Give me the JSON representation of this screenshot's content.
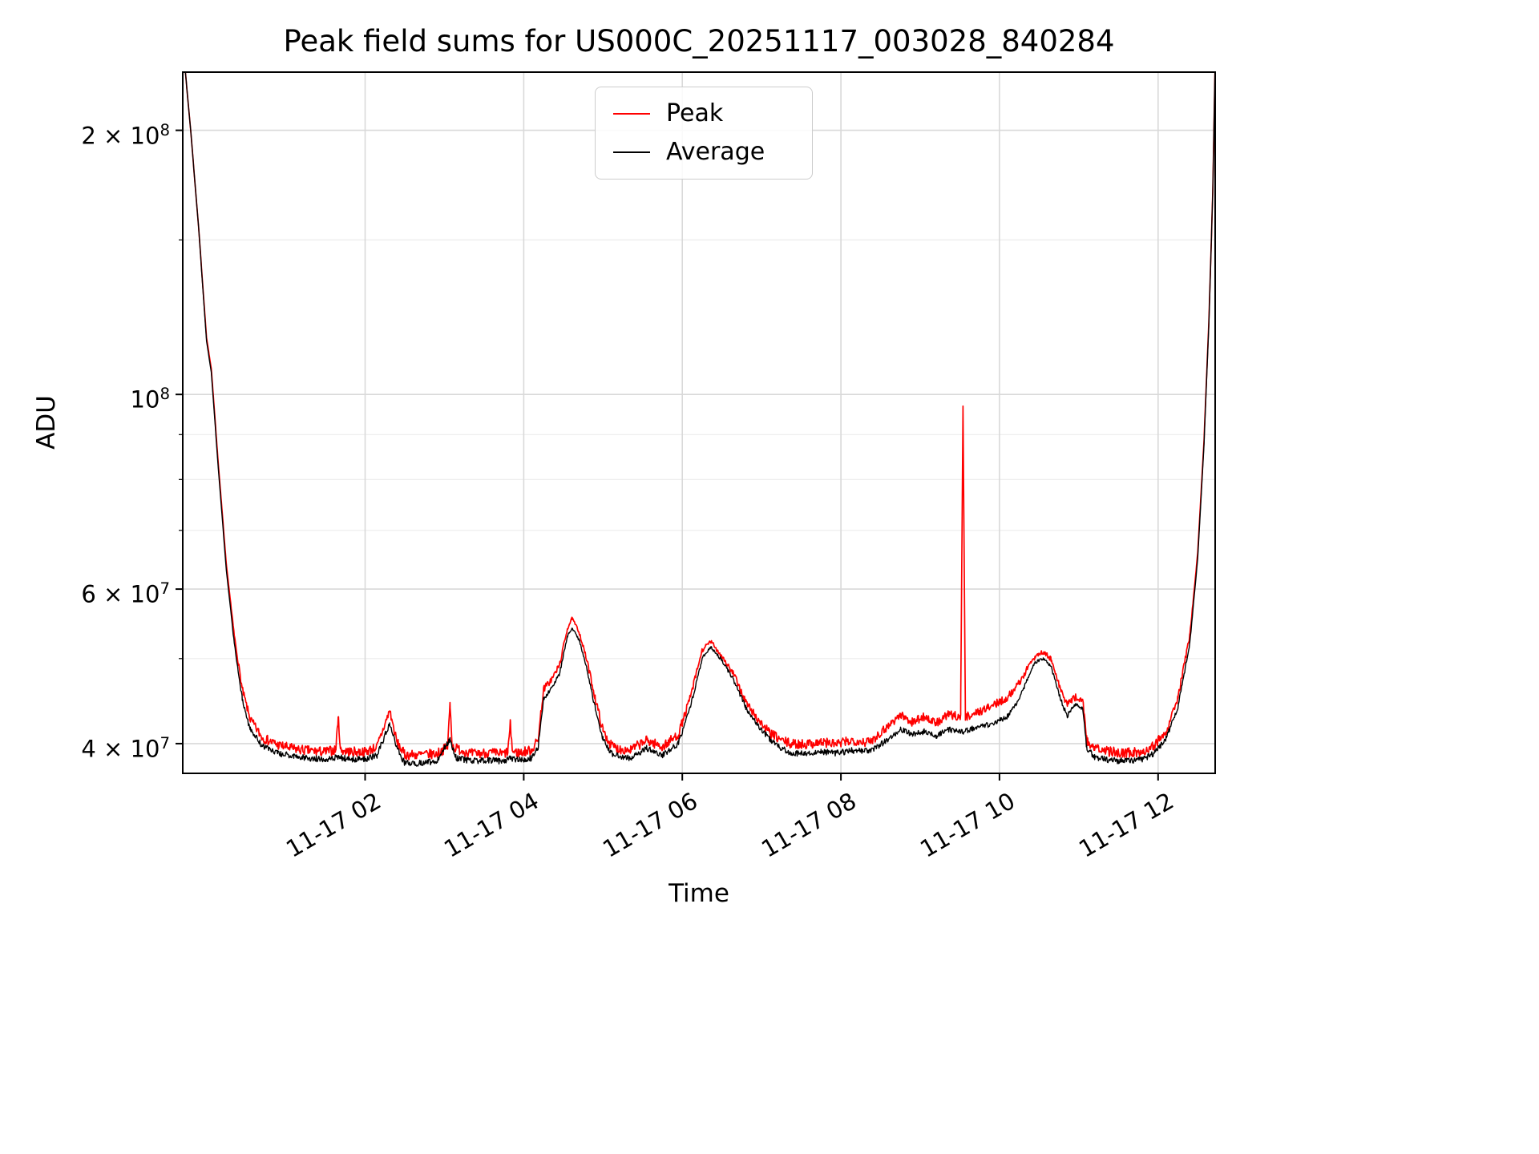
{
  "chart_data": {
    "type": "line",
    "title": "Peak field sums for US000C_20251117_003028_840284",
    "xlabel": "Time",
    "ylabel": "ADU",
    "grid": true,
    "background": "#ffffff",
    "style": {
      "grid_major": "#d9d9d9",
      "grid_minor": "#ececec",
      "spine": "#000000",
      "legend_edge": "#cccccc"
    },
    "legend": {
      "loc": "upper center",
      "entries": [
        "Peak",
        "Average"
      ]
    },
    "axis": {
      "t_min": -0.3,
      "t_max": 12.72,
      "y_min": 37000000.0,
      "y_max": 233000000.0,
      "y_scale": "log",
      "x_unit": "hours on 11-17"
    },
    "x_ticks": [
      {
        "t": 2,
        "label": "11-17 02"
      },
      {
        "t": 4,
        "label": "11-17 04"
      },
      {
        "t": 6,
        "label": "11-17 06"
      },
      {
        "t": 8,
        "label": "11-17 08"
      },
      {
        "t": 10,
        "label": "11-17 10"
      },
      {
        "t": 12,
        "label": "11-17 12"
      }
    ],
    "y_ticks": [
      {
        "value": 200000000.0,
        "mantissa": "2 × 10",
        "exp": "8"
      },
      {
        "value": 100000000.0,
        "mantissa": "10",
        "exp": "8"
      },
      {
        "value": 60000000.0,
        "mantissa": "6 × 10",
        "exp": "7"
      },
      {
        "value": 40000000.0,
        "mantissa": "4 × 10",
        "exp": "7"
      }
    ],
    "y_minor_gridlines": [
      50000000.0,
      70000000.0,
      80000000.0,
      90000000.0,
      150000000.0
    ],
    "value_scale": 10000000.0,
    "noise": {
      "seed": 7,
      "quiet_fade_hi": 6.2,
      "quiet_fade_range": 2.2
    },
    "series": [
      {
        "name": "Peak",
        "color": "#ff0000",
        "width": 1.7,
        "noise_amp": 0.013,
        "noise_bias": 0.7,
        "keypoints": [
          [
            -0.28,
            24
          ],
          [
            -0.2,
            20
          ],
          [
            -0.1,
            15.5
          ],
          [
            0.0,
            11.6
          ],
          [
            0.06,
            10.7
          ],
          [
            0.15,
            8.3
          ],
          [
            0.25,
            6.4
          ],
          [
            0.35,
            5.3
          ],
          [
            0.45,
            4.6
          ],
          [
            0.55,
            4.25
          ],
          [
            0.7,
            4.05
          ],
          [
            0.9,
            3.97
          ],
          [
            1.1,
            3.93
          ],
          [
            1.3,
            3.91
          ],
          [
            1.5,
            3.9
          ],
          [
            1.63,
            3.92
          ],
          [
            1.66,
            4.28
          ],
          [
            1.69,
            3.92
          ],
          [
            1.8,
            3.9
          ],
          [
            2.0,
            3.9
          ],
          [
            2.15,
            3.95
          ],
          [
            2.31,
            4.35
          ],
          [
            2.4,
            4.0
          ],
          [
            2.5,
            3.87
          ],
          [
            2.7,
            3.87
          ],
          [
            2.9,
            3.88
          ],
          [
            3.04,
            3.95
          ],
          [
            3.07,
            4.42
          ],
          [
            3.1,
            3.95
          ],
          [
            3.35,
            3.88
          ],
          [
            3.55,
            3.89
          ],
          [
            3.75,
            3.88
          ],
          [
            3.8,
            3.9
          ],
          [
            3.83,
            4.2
          ],
          [
            3.86,
            3.9
          ],
          [
            3.95,
            3.89
          ],
          [
            4.1,
            3.92
          ],
          [
            4.18,
            4.02
          ],
          [
            4.25,
            4.6
          ],
          [
            4.35,
            4.72
          ],
          [
            4.45,
            4.9
          ],
          [
            4.55,
            5.4
          ],
          [
            4.61,
            5.55
          ],
          [
            4.7,
            5.35
          ],
          [
            4.8,
            4.95
          ],
          [
            4.9,
            4.5
          ],
          [
            5.0,
            4.12
          ],
          [
            5.1,
            3.97
          ],
          [
            5.19,
            3.93
          ],
          [
            5.35,
            3.92
          ],
          [
            5.55,
            4.02
          ],
          [
            5.75,
            3.95
          ],
          [
            5.95,
            4.08
          ],
          [
            6.1,
            4.5
          ],
          [
            6.25,
            5.1
          ],
          [
            6.36,
            5.22
          ],
          [
            6.5,
            5.02
          ],
          [
            6.65,
            4.78
          ],
          [
            6.8,
            4.45
          ],
          [
            6.95,
            4.25
          ],
          [
            7.1,
            4.1
          ],
          [
            7.25,
            4.02
          ],
          [
            7.37,
            3.98
          ],
          [
            7.55,
            3.98
          ],
          [
            7.75,
            4.0
          ],
          [
            7.95,
            3.98
          ],
          [
            8.15,
            4.02
          ],
          [
            8.35,
            4.0
          ],
          [
            8.43,
            4.05
          ],
          [
            8.6,
            4.18
          ],
          [
            8.75,
            4.3
          ],
          [
            8.9,
            4.22
          ],
          [
            9.05,
            4.28
          ],
          [
            9.2,
            4.2
          ],
          [
            9.35,
            4.3
          ],
          [
            9.51,
            4.28
          ],
          [
            9.54,
            9.7
          ],
          [
            9.57,
            4.28
          ],
          [
            9.7,
            4.32
          ],
          [
            9.85,
            4.38
          ],
          [
            10.0,
            4.45
          ],
          [
            10.1,
            4.5
          ],
          [
            10.25,
            4.68
          ],
          [
            10.4,
            4.95
          ],
          [
            10.45,
            5.02
          ],
          [
            10.55,
            5.08
          ],
          [
            10.65,
            4.98
          ],
          [
            10.75,
            4.65
          ],
          [
            10.85,
            4.42
          ],
          [
            10.95,
            4.5
          ],
          [
            11.05,
            4.48
          ],
          [
            11.1,
            4.02
          ],
          [
            11.2,
            3.93
          ],
          [
            11.4,
            3.9
          ],
          [
            11.6,
            3.89
          ],
          [
            11.8,
            3.9
          ],
          [
            11.95,
            3.97
          ],
          [
            12.1,
            4.12
          ],
          [
            12.25,
            4.5
          ],
          [
            12.4,
            5.3
          ],
          [
            12.5,
            6.6
          ],
          [
            12.58,
            8.9
          ],
          [
            12.64,
            12.1
          ],
          [
            12.69,
            17
          ],
          [
            12.72,
            24
          ]
        ]
      },
      {
        "name": "Average",
        "color": "#000000",
        "width": 1.4,
        "noise_amp": 0.008,
        "noise_bias": 1.0,
        "keypoints": [
          [
            -0.28,
            24
          ],
          [
            -0.2,
            20
          ],
          [
            -0.1,
            15.5
          ],
          [
            0.0,
            11.5
          ],
          [
            0.06,
            10.6
          ],
          [
            0.15,
            8.2
          ],
          [
            0.25,
            6.3
          ],
          [
            0.35,
            5.2
          ],
          [
            0.45,
            4.5
          ],
          [
            0.55,
            4.15
          ],
          [
            0.7,
            3.98
          ],
          [
            0.9,
            3.9
          ],
          [
            1.1,
            3.87
          ],
          [
            1.3,
            3.85
          ],
          [
            1.5,
            3.84
          ],
          [
            1.66,
            3.86
          ],
          [
            1.8,
            3.84
          ],
          [
            2.0,
            3.84
          ],
          [
            2.15,
            3.88
          ],
          [
            2.31,
            4.22
          ],
          [
            2.4,
            3.95
          ],
          [
            2.5,
            3.8
          ],
          [
            2.7,
            3.8
          ],
          [
            2.9,
            3.82
          ],
          [
            3.07,
            4.05
          ],
          [
            3.15,
            3.85
          ],
          [
            3.35,
            3.82
          ],
          [
            3.55,
            3.83
          ],
          [
            3.75,
            3.82
          ],
          [
            3.83,
            3.85
          ],
          [
            3.95,
            3.83
          ],
          [
            4.1,
            3.85
          ],
          [
            4.18,
            3.95
          ],
          [
            4.25,
            4.5
          ],
          [
            4.35,
            4.62
          ],
          [
            4.45,
            4.8
          ],
          [
            4.55,
            5.3
          ],
          [
            4.61,
            5.42
          ],
          [
            4.7,
            5.25
          ],
          [
            4.8,
            4.85
          ],
          [
            4.9,
            4.4
          ],
          [
            5.0,
            4.05
          ],
          [
            5.1,
            3.9
          ],
          [
            5.19,
            3.87
          ],
          [
            5.35,
            3.85
          ],
          [
            5.55,
            3.95
          ],
          [
            5.75,
            3.88
          ],
          [
            5.95,
            4.0
          ],
          [
            6.1,
            4.4
          ],
          [
            6.25,
            5.0
          ],
          [
            6.36,
            5.15
          ],
          [
            6.5,
            4.98
          ],
          [
            6.65,
            4.72
          ],
          [
            6.8,
            4.4
          ],
          [
            6.95,
            4.2
          ],
          [
            7.1,
            4.05
          ],
          [
            7.25,
            3.95
          ],
          [
            7.37,
            3.9
          ],
          [
            7.55,
            3.9
          ],
          [
            7.75,
            3.92
          ],
          [
            7.95,
            3.9
          ],
          [
            8.15,
            3.93
          ],
          [
            8.35,
            3.92
          ],
          [
            8.43,
            3.95
          ],
          [
            8.6,
            4.05
          ],
          [
            8.75,
            4.15
          ],
          [
            8.9,
            4.1
          ],
          [
            9.05,
            4.13
          ],
          [
            9.2,
            4.08
          ],
          [
            9.35,
            4.15
          ],
          [
            9.54,
            4.13
          ],
          [
            9.7,
            4.17
          ],
          [
            9.85,
            4.2
          ],
          [
            10.0,
            4.25
          ],
          [
            10.1,
            4.3
          ],
          [
            10.25,
            4.5
          ],
          [
            10.4,
            4.85
          ],
          [
            10.45,
            4.95
          ],
          [
            10.55,
            5.0
          ],
          [
            10.65,
            4.9
          ],
          [
            10.75,
            4.55
          ],
          [
            10.85,
            4.3
          ],
          [
            10.95,
            4.42
          ],
          [
            11.05,
            4.4
          ],
          [
            11.1,
            3.95
          ],
          [
            11.2,
            3.86
          ],
          [
            11.4,
            3.83
          ],
          [
            11.6,
            3.82
          ],
          [
            11.8,
            3.84
          ],
          [
            11.95,
            3.9
          ],
          [
            12.1,
            4.05
          ],
          [
            12.25,
            4.4
          ],
          [
            12.4,
            5.2
          ],
          [
            12.5,
            6.5
          ],
          [
            12.58,
            8.8
          ],
          [
            12.64,
            12
          ],
          [
            12.69,
            17
          ],
          [
            12.72,
            24
          ]
        ]
      }
    ]
  }
}
